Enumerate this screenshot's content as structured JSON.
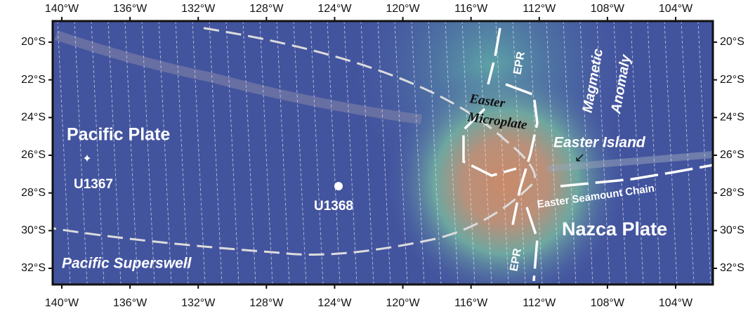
{
  "map": {
    "lon_ticks": [
      {
        "value": 140,
        "label": "140°W"
      },
      {
        "value": 136,
        "label": "136°W"
      },
      {
        "value": 132,
        "label": "132°W"
      },
      {
        "value": 128,
        "label": "128°W"
      },
      {
        "value": 124,
        "label": "124°W"
      },
      {
        "value": 120,
        "label": "120°W"
      },
      {
        "value": 116,
        "label": "116°W"
      },
      {
        "value": 112,
        "label": "112°W"
      },
      {
        "value": 108,
        "label": "108°W"
      },
      {
        "value": 104,
        "label": "104°W"
      }
    ],
    "lat_ticks": [
      {
        "value": 20,
        "label": "20°S"
      },
      {
        "value": 22,
        "label": "22°S"
      },
      {
        "value": 24,
        "label": "24°S"
      },
      {
        "value": 26,
        "label": "26°S"
      },
      {
        "value": 28,
        "label": "28°S"
      },
      {
        "value": 30,
        "label": "30°S"
      },
      {
        "value": 32,
        "label": "32°S"
      }
    ],
    "labels": [
      "Pacific Plate",
      "U1367",
      "U1368",
      "Pacific Superswell",
      "EPR",
      "EPR",
      "Easter",
      "Microplate",
      "Magmetic",
      "Anomaly",
      "Easter Island",
      "Easter Seamount Chain",
      "Nazca Plate"
    ]
  }
}
